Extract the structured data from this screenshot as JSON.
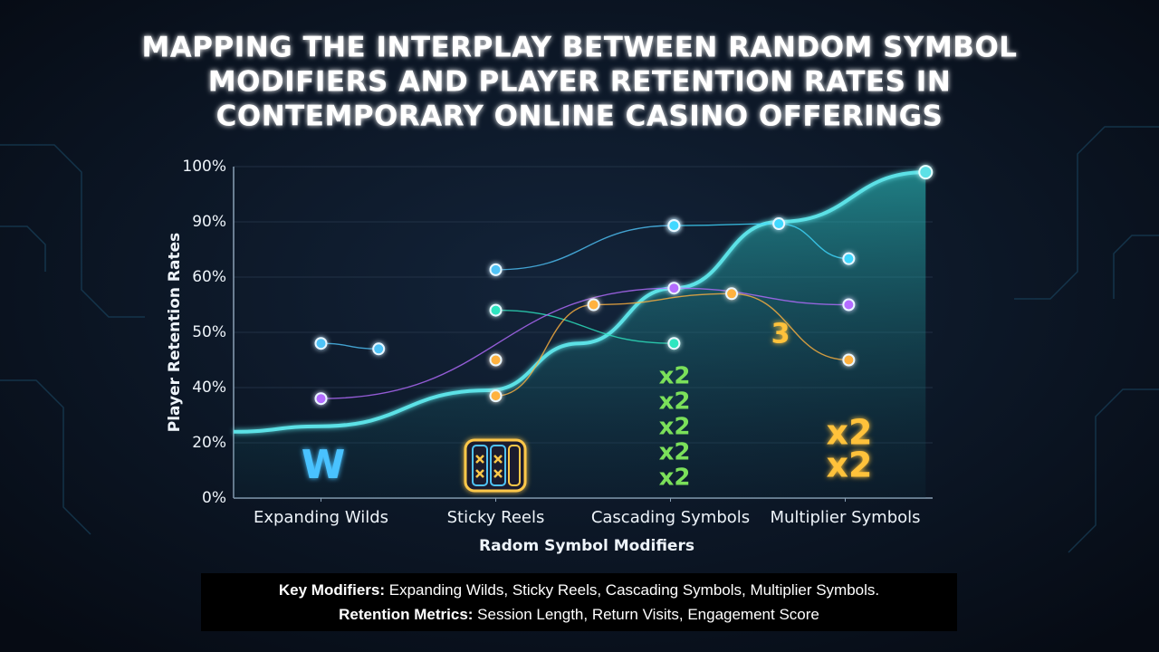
{
  "chart_data": {
    "type": "line",
    "title": [
      "MAPPING THE INTERPLAY BETWEEN RANDOM SYMBOL",
      "MODIFIERS AND PLAYER RETENTION RATES IN",
      "CONTEMPORARY ONLINE CASINO OFFERINGS"
    ],
    "xlabel": "Radom Symbol Modifiers",
    "ylabel": "Player Retention Rates",
    "xlim": [
      -0.5,
      3.5
    ],
    "ylim": [
      0,
      100
    ],
    "xticks": [
      {
        "value": 0,
        "label": "Expanding Wilds"
      },
      {
        "value": 1,
        "label": "Sticky Reels"
      },
      {
        "value": 2,
        "label": "Cascading Symbols"
      },
      {
        "value": 3,
        "label": "Multiplier Symbols"
      }
    ],
    "yticks": [
      {
        "value": 0,
        "label": "0%"
      },
      {
        "value": 20,
        "label": "20%"
      },
      {
        "value": 40,
        "label": "40%"
      },
      {
        "value": 50,
        "label": "50%"
      },
      {
        "value": 60,
        "label": "60%"
      },
      {
        "value": 90,
        "label": "90%"
      },
      {
        "value": 100,
        "label": "100%"
      }
    ],
    "grid": true,
    "series": [
      {
        "color": "#5ce1e6",
        "area": true,
        "x": [
          -0.5,
          0,
          0.96,
          1.48,
          2.02,
          2.62,
          3.46
        ],
        "values": [
          24,
          26,
          39,
          48,
          58,
          90,
          99
        ]
      },
      {
        "color": "#4fc3f7",
        "x": [
          0,
          0.33
        ],
        "values": [
          48,
          47
        ]
      },
      {
        "color": "#4fc3f7",
        "x": [
          1,
          2.02
        ],
        "values": [
          64,
          88
        ]
      },
      {
        "color": "#2ee6c0",
        "x": [
          1,
          2.02
        ],
        "values": [
          54,
          48
        ]
      },
      {
        "color": "#40d8ff",
        "x": [
          2.02,
          2.62,
          3.02
        ],
        "values": [
          88,
          89,
          70
        ]
      },
      {
        "color": "#b46cff",
        "x": [
          0,
          2.02,
          3.02
        ],
        "values": [
          36,
          58,
          55
        ]
      },
      {
        "color": "#ffb23f",
        "x": [
          1,
          1.56,
          2.35,
          3.02
        ],
        "values": [
          37,
          55,
          57,
          45
        ]
      },
      {
        "color": "#ffb23f",
        "x": [
          1
        ],
        "values": [
          45
        ]
      }
    ],
    "icons": {
      "wild": "W",
      "cascade": [
        "x2",
        "x2",
        "x2",
        "x2",
        "x2"
      ],
      "multiplier_count": "3",
      "multiplier": [
        "x2",
        "x2"
      ]
    }
  },
  "footer": {
    "line1_label": "Key Modifiers:",
    "line1_text": "Expanding Wilds, Sticky Reels, Cascading Symbols, Multiplier Symbols.",
    "line2_label": "Retention Metrics:",
    "line2_text": "Session Length, Return Visits, Engagement Score"
  }
}
